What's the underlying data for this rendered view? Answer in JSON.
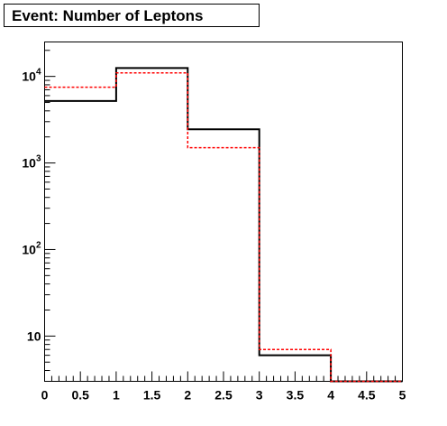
{
  "chart_data": {
    "type": "step-histogram",
    "title": "Event: Number of Leptons",
    "xlabel": "",
    "ylabel": "",
    "xlim": [
      0,
      5
    ],
    "ylim": [
      3,
      25000
    ],
    "y_scale": "log",
    "x_ticks": [
      "0",
      "0.5",
      "1",
      "1.5",
      "2",
      "2.5",
      "3",
      "3.5",
      "4",
      "4.5",
      "5"
    ],
    "y_ticks": [
      {
        "value": 10,
        "base": "10",
        "exp": ""
      },
      {
        "value": 100,
        "base": "10",
        "exp": "2"
      },
      {
        "value": 1000,
        "base": "10",
        "exp": "3"
      },
      {
        "value": 10000,
        "base": "10",
        "exp": "4"
      }
    ],
    "bin_edges": [
      0,
      1,
      2,
      3,
      4,
      5
    ],
    "series": [
      {
        "values": [
          5200,
          12500,
          2450,
          6,
          0
        ],
        "color": "#000000",
        "style": "solid"
      },
      {
        "values": [
          7500,
          11000,
          1500,
          7,
          0
        ],
        "color": "#ff0000",
        "style": "dashed"
      }
    ],
    "grid": false,
    "legend": "none"
  }
}
